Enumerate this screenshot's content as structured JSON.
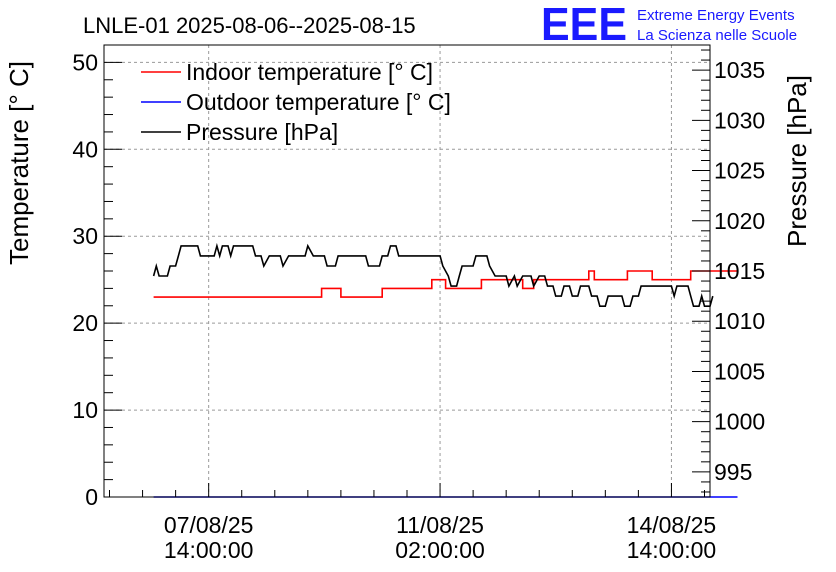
{
  "chart_data": {
    "type": "line",
    "title": "LNLE-01 2025-08-06--2025-08-15",
    "logo": {
      "mark": "EEE",
      "line1": "Extreme Energy Events",
      "line2": "La Scienza nelle Scuole"
    },
    "x_axis": {
      "range_hours_from_2025_08_06_00": [
        0,
        220
      ],
      "ticks": [
        {
          "hours": 38,
          "date": "07/08/25",
          "time": "14:00:00"
        },
        {
          "hours": 122,
          "date": "11/08/25",
          "time": "02:00:00"
        },
        {
          "hours": 206,
          "date": "14/08/25",
          "time": "14:00:00"
        }
      ]
    },
    "y_left": {
      "label": "Temperature [° C]",
      "range": [
        0,
        52
      ],
      "ticks": [
        0,
        10,
        20,
        30,
        40,
        50
      ]
    },
    "y_right": {
      "label": "Pressure [hPa]",
      "range": [
        992.5,
        1037.5
      ],
      "ticks": [
        995,
        1000,
        1005,
        1010,
        1015,
        1020,
        1025,
        1030,
        1035
      ]
    },
    "grid": true,
    "legend_position": "top-left",
    "series": [
      {
        "name": "Indoor temperature [° C]",
        "axis": "left",
        "color": "#ff0000",
        "points": [
          [
            18,
            23
          ],
          [
            79,
            23
          ],
          [
            79,
            24
          ],
          [
            86,
            24
          ],
          [
            86,
            23
          ],
          [
            101,
            23
          ],
          [
            101,
            24
          ],
          [
            119,
            24
          ],
          [
            119,
            25
          ],
          [
            124,
            25
          ],
          [
            124,
            24
          ],
          [
            137,
            24
          ],
          [
            137,
            25
          ],
          [
            152,
            25
          ],
          [
            152,
            24
          ],
          [
            156,
            24
          ],
          [
            156,
            25
          ],
          [
            176,
            25
          ],
          [
            176,
            26
          ],
          [
            178,
            26
          ],
          [
            178,
            25
          ],
          [
            190,
            25
          ],
          [
            190,
            26
          ],
          [
            199,
            26
          ],
          [
            199,
            25
          ],
          [
            213,
            25
          ],
          [
            213,
            26
          ],
          [
            230,
            26
          ]
        ]
      },
      {
        "name": "Outdoor temperature [° C]",
        "axis": "left",
        "color": "#0000ff",
        "points": [
          [
            18,
            0
          ],
          [
            230,
            0
          ]
        ]
      },
      {
        "name": "Pressure [hPa]",
        "axis": "right",
        "color": "#000000",
        "points": [
          [
            18,
            1014.5
          ],
          [
            19,
            1015.5
          ],
          [
            20,
            1014.5
          ],
          [
            23,
            1014.5
          ],
          [
            24,
            1015.5
          ],
          [
            26,
            1015.5
          ],
          [
            27,
            1016.5
          ],
          [
            28,
            1017.5
          ],
          [
            34,
            1017.5
          ],
          [
            35,
            1016.5
          ],
          [
            40,
            1016.5
          ],
          [
            41,
            1017.5
          ],
          [
            42,
            1016.5
          ],
          [
            43,
            1017.5
          ],
          [
            45,
            1017.5
          ],
          [
            46,
            1016.5
          ],
          [
            47,
            1017.5
          ],
          [
            54,
            1017.5
          ],
          [
            55,
            1016.5
          ],
          [
            57,
            1016.5
          ],
          [
            58,
            1015.5
          ],
          [
            60,
            1016.5
          ],
          [
            64,
            1016.5
          ],
          [
            65,
            1015.5
          ],
          [
            67,
            1016.5
          ],
          [
            73,
            1016.5
          ],
          [
            74,
            1017.5
          ],
          [
            76,
            1016.5
          ],
          [
            80,
            1016.5
          ],
          [
            81,
            1015.5
          ],
          [
            84,
            1015.5
          ],
          [
            85,
            1016.5
          ],
          [
            95,
            1016.5
          ],
          [
            96,
            1015.5
          ],
          [
            100,
            1015.5
          ],
          [
            101,
            1016.5
          ],
          [
            103,
            1016.5
          ],
          [
            104,
            1017.5
          ],
          [
            106,
            1017.5
          ],
          [
            107,
            1016.5
          ],
          [
            122,
            1016.5
          ],
          [
            123,
            1015.5
          ],
          [
            125,
            1014.5
          ],
          [
            126,
            1013.5
          ],
          [
            128,
            1013.5
          ],
          [
            129,
            1014.5
          ],
          [
            130,
            1015.5
          ],
          [
            134,
            1015.5
          ],
          [
            135,
            1016.5
          ],
          [
            139,
            1016.5
          ],
          [
            140,
            1015.5
          ],
          [
            142,
            1014.5
          ],
          [
            146,
            1014.5
          ],
          [
            147,
            1013.5
          ],
          [
            149,
            1014.5
          ],
          [
            150,
            1013.5
          ],
          [
            152,
            1014.5
          ],
          [
            155,
            1014.5
          ],
          [
            156,
            1013.5
          ],
          [
            158,
            1014.5
          ],
          [
            160,
            1014.5
          ],
          [
            161,
            1013.5
          ],
          [
            163,
            1013.5
          ],
          [
            164,
            1012.5
          ],
          [
            166,
            1012.5
          ],
          [
            167,
            1013.5
          ],
          [
            169,
            1013.5
          ],
          [
            170,
            1012.5
          ],
          [
            172,
            1012.5
          ],
          [
            173,
            1013.5
          ],
          [
            176,
            1013.5
          ],
          [
            177,
            1012.5
          ],
          [
            179,
            1012.5
          ],
          [
            180,
            1011.5
          ],
          [
            182,
            1011.5
          ],
          [
            183,
            1012.5
          ],
          [
            188,
            1012.5
          ],
          [
            189,
            1011.5
          ],
          [
            191,
            1011.5
          ],
          [
            192,
            1012.5
          ],
          [
            194,
            1012.5
          ],
          [
            195,
            1013.5
          ],
          [
            206,
            1013.5
          ],
          [
            207,
            1012.5
          ],
          [
            208,
            1013.5
          ],
          [
            212,
            1013.5
          ],
          [
            213,
            1012.5
          ],
          [
            214,
            1011.5
          ],
          [
            216,
            1011.5
          ],
          [
            217,
            1012.5
          ],
          [
            218,
            1011.5
          ],
          [
            220,
            1011.5
          ],
          [
            221,
            1012.5
          ]
        ]
      }
    ]
  }
}
